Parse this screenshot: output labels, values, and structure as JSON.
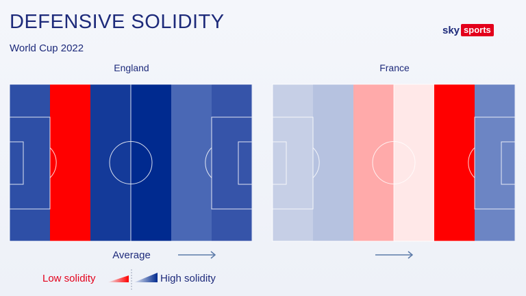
{
  "header": {
    "title": "DEFENSIVE SOLIDITY",
    "subtitle": "World Cup 2022",
    "logo_sky": "sky",
    "logo_sports": "sports"
  },
  "legend": {
    "low_label": "Low solidity",
    "high_label": "High solidity",
    "low_color": "#ff0000",
    "high_color": "#002a8f"
  },
  "axis": {
    "average_label": "Average"
  },
  "colors": {
    "pitch_lines": "#ffffff",
    "text": "#1d2a7a",
    "arrow": "#5b7aa8"
  },
  "chart_data": [
    {
      "type": "heatmap",
      "team": "England",
      "zones": [
        "zone-1",
        "zone-2",
        "zone-3",
        "zone-4",
        "zone-5",
        "zone-6"
      ],
      "zone_colors": [
        "#2e4fa6",
        "#ff0000",
        "#143a99",
        "#002a8f",
        "#4a68b5",
        "#3654a9"
      ]
    },
    {
      "type": "heatmap",
      "team": "France",
      "zones": [
        "zone-1",
        "zone-2",
        "zone-3",
        "zone-4",
        "zone-5",
        "zone-6"
      ],
      "zone_colors": [
        "#c6cfe6",
        "#b6c2e0",
        "#ffaaaa",
        "#ffe8e8",
        "#ff0000",
        "#6c85c4"
      ]
    }
  ]
}
